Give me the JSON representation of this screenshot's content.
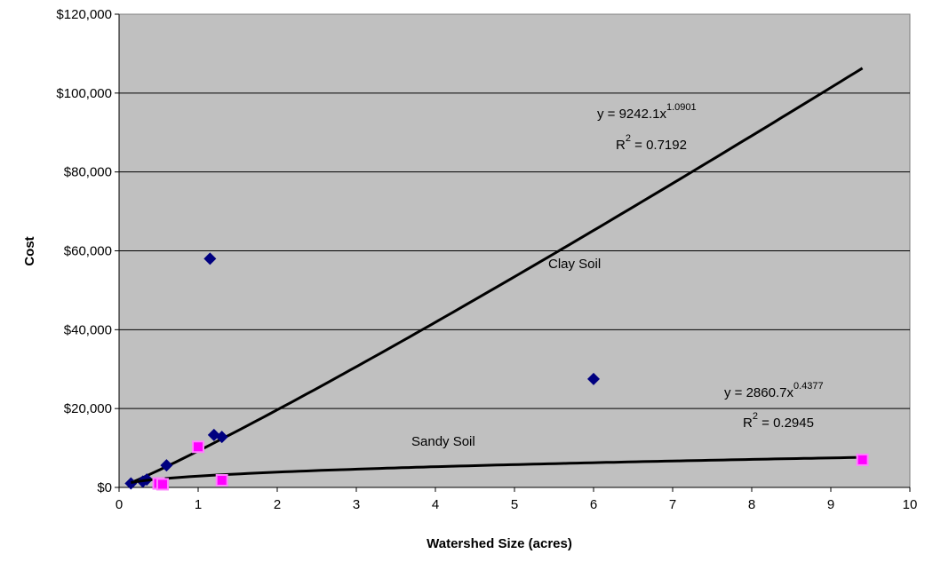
{
  "chart_data": {
    "type": "scatter",
    "xlabel": "Watershed Size (acres)",
    "ylabel": "Cost",
    "xlim": [
      0,
      10
    ],
    "ylim": [
      0,
      120000
    ],
    "xticks": [
      0,
      1,
      2,
      3,
      4,
      5,
      6,
      7,
      8,
      9,
      10
    ],
    "yticks": [
      {
        "value": 0,
        "label": "$0"
      },
      {
        "value": 20000,
        "label": "$20,000"
      },
      {
        "value": 40000,
        "label": "$40,000"
      },
      {
        "value": 60000,
        "label": "$60,000"
      },
      {
        "value": 80000,
        "label": "$80,000"
      },
      {
        "value": 100000,
        "label": "$100,000"
      },
      {
        "value": 120000,
        "label": "$120,000"
      }
    ],
    "grid": true,
    "series": [
      {
        "name": "Clay Soil",
        "color": "#000080",
        "marker": "diamond",
        "x": [
          0.15,
          0.3,
          0.35,
          0.6,
          1.15,
          1.2,
          1.3,
          6.0
        ],
        "values": [
          1000,
          1500,
          2000,
          5600,
          58000,
          13300,
          12800,
          27500
        ],
        "trendline": {
          "coef": 9242.1,
          "exp": 1.0901,
          "xlim": [
            0.15,
            9.4
          ],
          "color": "#000000",
          "equation": "y = 9242.1x",
          "exponent": "1.0901",
          "r2_base": "R",
          "r2_sup": "2",
          "r2_value": " = 0.7192"
        }
      },
      {
        "name": "Sandy Soil",
        "color": "#ff00ff",
        "marker": "square",
        "x": [
          0.5,
          0.55,
          1.0,
          1.3,
          9.4
        ],
        "values": [
          1000,
          800,
          10300,
          1800,
          7000
        ],
        "trendline": {
          "coef": 2860.7,
          "exp": 0.4377,
          "xlim": [
            0.15,
            9.4
          ],
          "color": "#000000",
          "equation": "y = 2860.7x",
          "exponent": "0.4377",
          "r2_base": "R",
          "r2_sup": "2",
          "r2_value": " = 0.2945"
        }
      }
    ]
  }
}
